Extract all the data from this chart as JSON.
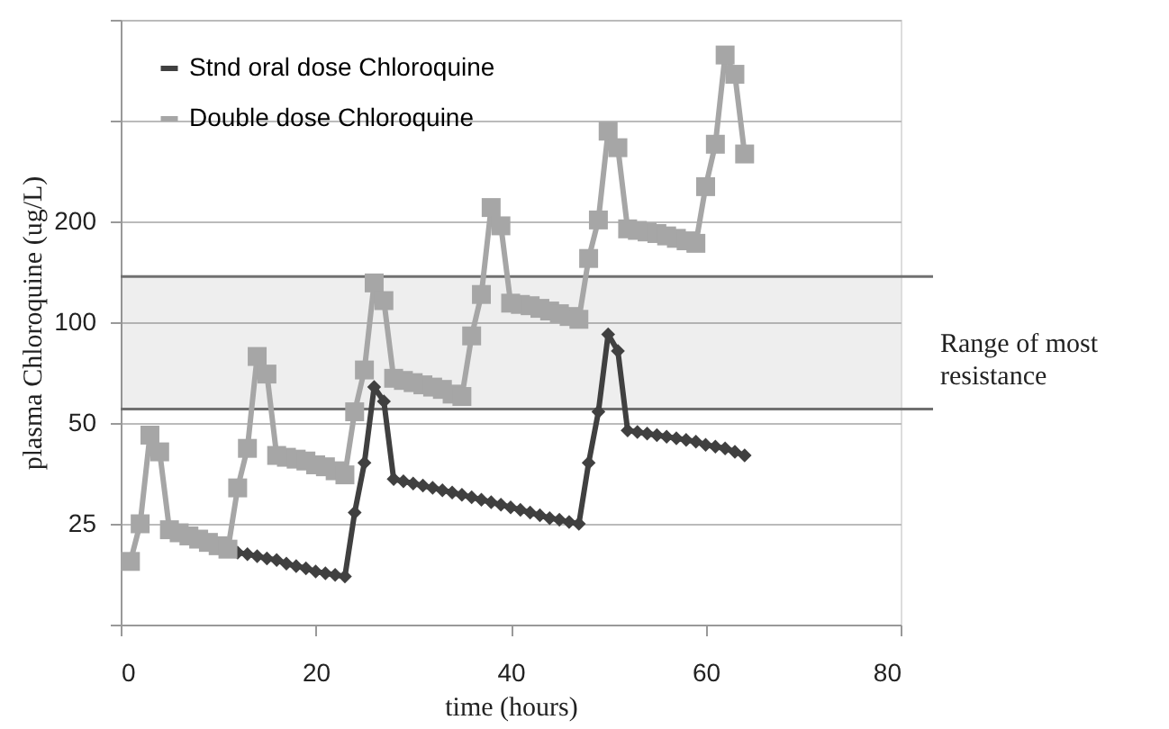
{
  "chart_data": {
    "type": "line",
    "xlabel": "time (hours)",
    "ylabel": "plasma Chloroquine (ug/L)",
    "log": "y",
    "grid": "y",
    "legend": "top left",
    "xlim": [
      0,
      80
    ],
    "xticks": [
      0,
      20,
      40,
      60,
      80
    ],
    "ylim": [
      12.5,
      800
    ],
    "yticks": [
      {
        "value": 12.5,
        "label": null
      },
      25,
      50,
      100,
      200,
      {
        "value": 400,
        "label": null
      },
      {
        "value": 800,
        "label": null
      }
    ],
    "bands": [
      {
        "axis": "y",
        "from": 55,
        "to": 137,
        "label": "Range of most resistance",
        "color": "#707070"
      }
    ],
    "ref_lines": [
      {
        "axis": "y",
        "value": 55,
        "color": "#707070"
      },
      {
        "axis": "y",
        "value": 137,
        "color": "#707070"
      }
    ],
    "series": [
      {
        "name": "Stnd oral dose Chloroquine",
        "color": "#404040",
        "marker": "diamond",
        "x": [
          12,
          13,
          14,
          15,
          16,
          17,
          18,
          19,
          20,
          21,
          22,
          23,
          24,
          25,
          26,
          27,
          28,
          29,
          30,
          31,
          32,
          33,
          34,
          35,
          36,
          37,
          38,
          39,
          40,
          41,
          42,
          43,
          44,
          45,
          46,
          47,
          48,
          49,
          50,
          51,
          52,
          53,
          54,
          55,
          56,
          57,
          58,
          59,
          60,
          61,
          62,
          63,
          64
        ],
        "values": [
          20.5,
          20.3,
          20,
          19.7,
          19.5,
          19,
          18.7,
          18.4,
          18,
          17.8,
          17.6,
          17.4,
          27,
          38,
          64,
          58,
          34,
          33.5,
          33,
          32.5,
          32,
          31.5,
          31,
          30.5,
          30,
          29.5,
          29,
          28.5,
          28,
          27.5,
          27,
          26.5,
          26,
          25.7,
          25.3,
          25,
          38,
          54,
          92,
          82,
          47.5,
          47,
          46.5,
          46,
          45.5,
          45,
          44.5,
          44,
          43,
          42.5,
          42,
          41,
          40
        ]
      },
      {
        "name": "Double dose Chloroquine",
        "color": "#a6a6a6",
        "marker": "square",
        "x": [
          1,
          2,
          3,
          4,
          5,
          6,
          7,
          8,
          9,
          10,
          11,
          12,
          13,
          14,
          15,
          16,
          17,
          18,
          19,
          20,
          21,
          22,
          23,
          24,
          25,
          26,
          27,
          28,
          29,
          30,
          31,
          32,
          33,
          34,
          35,
          36,
          37,
          38,
          39,
          40,
          41,
          42,
          43,
          44,
          45,
          46,
          47,
          48,
          49,
          50,
          51,
          52,
          53,
          54,
          55,
          56,
          57,
          58,
          59,
          60,
          61,
          62,
          63,
          64
        ],
        "values": [
          19.3,
          25,
          46,
          41,
          24,
          23.5,
          23,
          22.5,
          22,
          21.5,
          21,
          32,
          42,
          79,
          70,
          40,
          39.5,
          39,
          38.5,
          37.5,
          37,
          36,
          35,
          54,
          72,
          131,
          116,
          68,
          67,
          66,
          65,
          64,
          63,
          61,
          60,
          91,
          121,
          220,
          194,
          114,
          113,
          112,
          110,
          108,
          106,
          104,
          102,
          155,
          202,
          372,
          332,
          190,
          188,
          186,
          184,
          181,
          178,
          175,
          172,
          254,
          340,
          628,
          550,
          318
        ]
      }
    ]
  }
}
